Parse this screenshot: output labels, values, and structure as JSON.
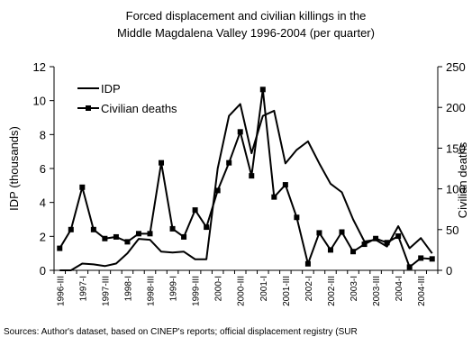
{
  "chart_data": {
    "type": "line",
    "title": [
      "Forced displacement and civilian killings in the",
      "Middle Magdalena Valley 1996-2004 (per quarter)"
    ],
    "ylabel": "IDP (thousands)",
    "y2label": "Civilian deaths",
    "ylim": [
      0,
      12
    ],
    "y2lim": [
      0,
      250
    ],
    "y_ticks": [
      "0",
      "2",
      "4",
      "6",
      "8",
      "10",
      "12"
    ],
    "y2_ticks": [
      "0",
      "50",
      "100",
      "150",
      "200",
      "250"
    ],
    "x_tick_labels": [
      "1996-III",
      "1997-I",
      "1997-III",
      "1998-I",
      "1998-III",
      "1999-I",
      "1999-III",
      "2000-I",
      "2000-III",
      "2001-I",
      "2001-III",
      "2002-I",
      "2002-III",
      "2003-I",
      "2003-III",
      "2004-I",
      "2004-III"
    ],
    "legend": "top-left",
    "grid": false,
    "series": [
      {
        "name": "IDP",
        "axis": "left",
        "marker": "none",
        "values": [
          0,
          0,
          0.4,
          0.35,
          0.25,
          0.4,
          1.0,
          1.85,
          1.8,
          1.1,
          1.05,
          1.1,
          0.65,
          0.65,
          6.0,
          9.1,
          9.8,
          6.9,
          9.1,
          9.4,
          6.3,
          7.1,
          7.6,
          6.3,
          5.1,
          4.6,
          3.0,
          1.7,
          1.8,
          1.4,
          2.6,
          1.3,
          1.9,
          1.0
        ]
      },
      {
        "name": "Civilian deaths",
        "axis": "right",
        "marker": "square",
        "values": [
          27,
          50,
          102,
          50,
          39,
          41,
          35,
          45,
          45,
          132,
          51,
          41,
          74,
          53,
          98,
          132,
          170,
          116,
          222,
          90,
          105,
          65,
          8,
          46,
          25,
          47,
          23,
          32,
          39,
          34,
          42,
          4,
          15,
          14
        ]
      }
    ]
  },
  "source_text": "Sources: Author's dataset, based on CINEP's reports; official displacement registry (SUR"
}
